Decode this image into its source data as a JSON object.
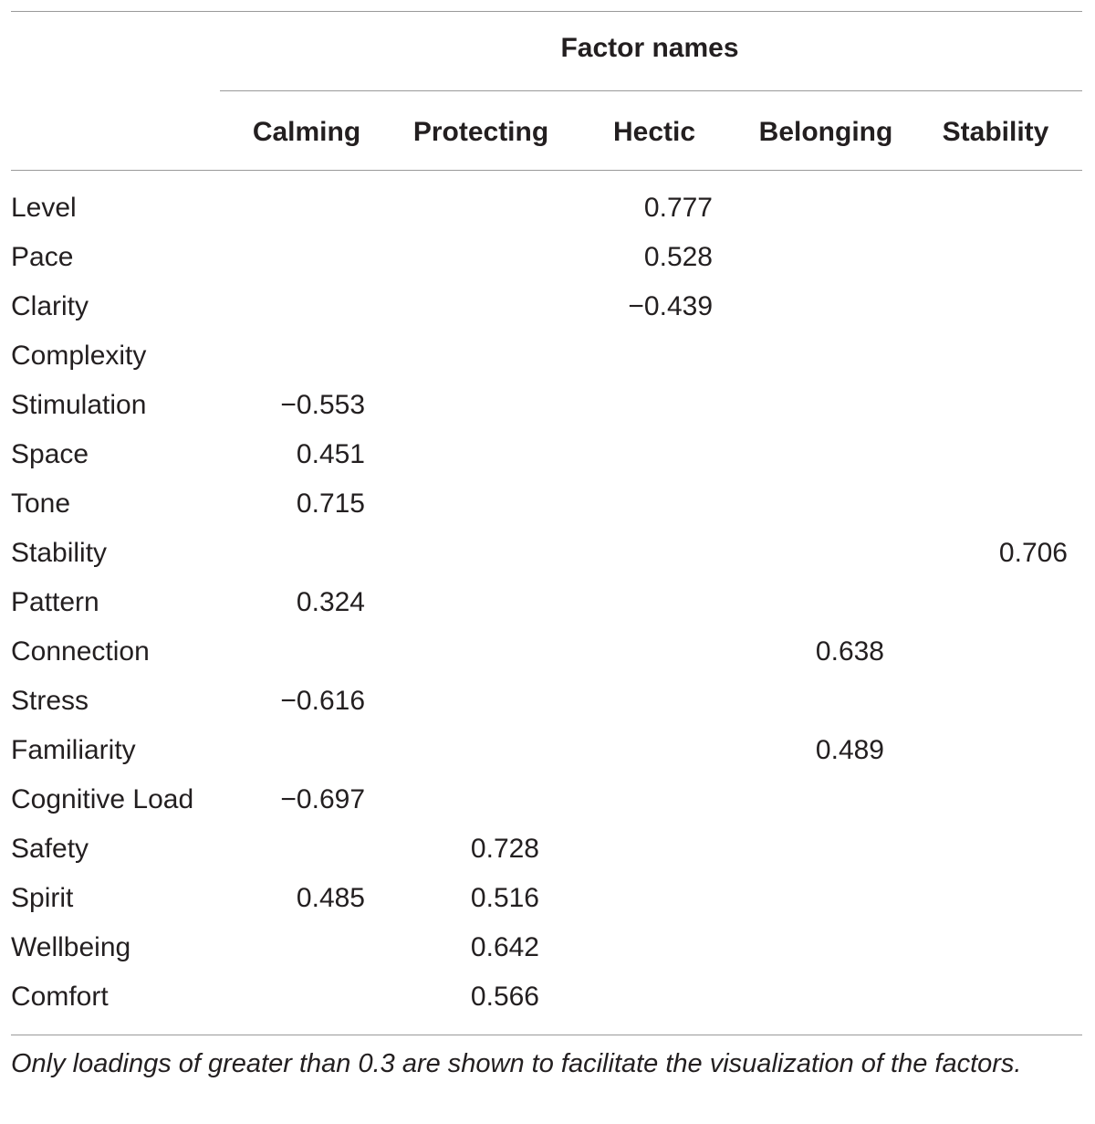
{
  "table": {
    "group_header": "Factor names",
    "columns": [
      "Calming",
      "Protecting",
      "Hectic",
      "Belonging",
      "Stability"
    ],
    "rows": [
      {
        "label": "Level",
        "cells": [
          null,
          null,
          "0.777",
          null,
          null
        ]
      },
      {
        "label": "Pace",
        "cells": [
          null,
          null,
          "0.528",
          null,
          null
        ]
      },
      {
        "label": "Clarity",
        "cells": [
          null,
          null,
          "−0.439",
          null,
          null
        ]
      },
      {
        "label": "Complexity",
        "cells": [
          null,
          null,
          null,
          null,
          null
        ]
      },
      {
        "label": "Stimulation",
        "cells": [
          "−0.553",
          null,
          null,
          null,
          null
        ]
      },
      {
        "label": "Space",
        "cells": [
          "0.451",
          null,
          null,
          null,
          null
        ]
      },
      {
        "label": "Tone",
        "cells": [
          "0.715",
          null,
          null,
          null,
          null
        ]
      },
      {
        "label": "Stability",
        "cells": [
          null,
          null,
          null,
          null,
          "0.706"
        ]
      },
      {
        "label": "Pattern",
        "cells": [
          "0.324",
          null,
          null,
          null,
          null
        ]
      },
      {
        "label": "Connection",
        "cells": [
          null,
          null,
          null,
          "0.638",
          null
        ]
      },
      {
        "label": "Stress",
        "cells": [
          "−0.616",
          null,
          null,
          null,
          null
        ]
      },
      {
        "label": "Familiarity",
        "cells": [
          null,
          null,
          null,
          "0.489",
          null
        ]
      },
      {
        "label": "Cognitive Load",
        "cells": [
          "−0.697",
          null,
          null,
          null,
          null
        ]
      },
      {
        "label": "Safety",
        "cells": [
          null,
          "0.728",
          null,
          null,
          null
        ]
      },
      {
        "label": "Spirit",
        "cells": [
          "0.485",
          "0.516",
          null,
          null,
          null
        ]
      },
      {
        "label": "Wellbeing",
        "cells": [
          null,
          "0.642",
          null,
          null,
          null
        ]
      },
      {
        "label": "Comfort",
        "cells": [
          null,
          "0.566",
          null,
          null,
          null
        ]
      }
    ],
    "footnote": "Only loadings of greater than 0.3 are shown to facilitate the visualization of the factors."
  }
}
